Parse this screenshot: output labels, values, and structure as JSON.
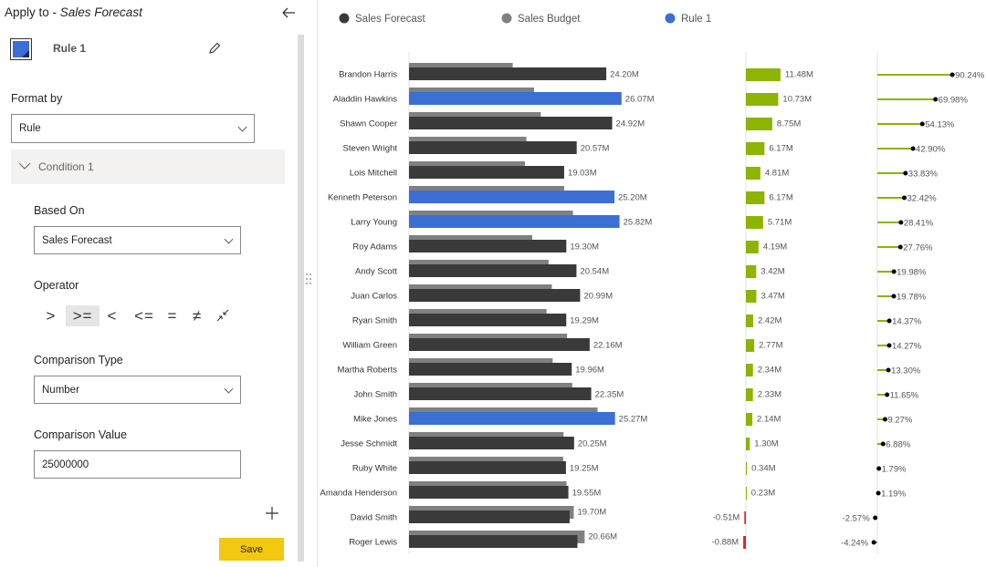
{
  "panel": {
    "apply_to_label": "Apply to - ",
    "apply_to_field": "Sales Forecast",
    "rule_name": "Rule 1",
    "format_by_label": "Format by",
    "format_by_value": "Rule",
    "condition_title": "Condition 1",
    "based_on_label": "Based On",
    "based_on_value": "Sales Forecast",
    "operator_label": "Operator",
    "operators": [
      ">",
      ">=",
      "<",
      "<=",
      "=",
      "≠"
    ],
    "comparison_type_label": "Comparison Type",
    "comparison_type_value": "Number",
    "comparison_value_label": "Comparison Value",
    "comparison_value": 25000000,
    "save_button": "Save"
  },
  "chart_data": [
    {
      "type": "hbar",
      "categories": [
        "Brandon Harris",
        "Aladdin Hawkins",
        "Shawn Cooper",
        "Steven Wright",
        "Lois Mitchell",
        "Kenneth Peterson",
        "Larry Young",
        "Roy Adams",
        "Andy Scott",
        "Juan Carlos",
        "Ryan Smith",
        "William Green",
        "Martha Roberts",
        "John Smith",
        "Mike Jones",
        "Jesse Schmidt",
        "Ruby White",
        "Amanda Henderson",
        "David Smith",
        "Roger Lewis"
      ],
      "series": [
        {
          "name": "Sales Forecast",
          "color": "#3a3a3a",
          "point_colors": [
            "#3a3a3a",
            "#3b6fd6",
            "#3a3a3a",
            "#3a3a3a",
            "#3a3a3a",
            "#3b6fd6",
            "#3b6fd6",
            "#3a3a3a",
            "#3a3a3a",
            "#3a3a3a",
            "#3a3a3a",
            "#3a3a3a",
            "#3a3a3a",
            "#3a3a3a",
            "#3b6fd6",
            "#3a3a3a",
            "#3a3a3a",
            "#3a3a3a",
            "#3a3a3a",
            "#3a3a3a"
          ],
          "values": [
            24.2,
            26.07,
            24.92,
            20.57,
            19.03,
            25.2,
            25.82,
            19.3,
            20.54,
            20.99,
            19.29,
            22.16,
            19.96,
            22.35,
            25.27,
            20.25,
            19.25,
            19.55,
            19.7,
            20.66
          ],
          "value_labels": [
            "24.20M",
            "26.07M",
            "24.92M",
            "20.57M",
            "19.03M",
            "25.20M",
            "25.82M",
            "19.30M",
            "20.54M",
            "20.99M",
            "19.29M",
            "22.16M",
            "19.96M",
            "22.35M",
            "25.27M",
            "20.25M",
            "19.25M",
            "19.55M",
            "19.70M",
            "20.66M"
          ]
        },
        {
          "name": "Sales Budget",
          "color": "#808080",
          "values": [
            12.72,
            15.34,
            16.17,
            14.4,
            14.22,
            19.03,
            20.11,
            15.11,
            17.12,
            17.52,
            16.87,
            19.39,
            17.62,
            20.02,
            23.13,
            18.95,
            18.91,
            19.32,
            20.21,
            21.54
          ]
        },
        {
          "name": "Rule 1",
          "color": "#3b6fd6"
        }
      ]
    },
    {
      "type": "variance-bar",
      "color": "#8cb400",
      "negative_color": "#e32020",
      "values": [
        11.48,
        10.73,
        8.75,
        6.17,
        4.81,
        6.17,
        5.71,
        4.19,
        3.42,
        3.47,
        2.42,
        2.77,
        2.34,
        2.33,
        2.14,
        1.3,
        0.34,
        0.23,
        -0.51,
        -0.88
      ],
      "value_labels": [
        "11.48M",
        "10.73M",
        "8.75M",
        "6.17M",
        "4.81M",
        "6.17M",
        "5.71M",
        "4.19M",
        "3.42M",
        "3.47M",
        "2.42M",
        "2.77M",
        "2.34M",
        "2.33M",
        "2.14M",
        "1.30M",
        "0.34M",
        "0.23M",
        "-0.51M",
        "-0.88M"
      ]
    },
    {
      "type": "lollipop",
      "color": "#8cb400",
      "marker_color": "#000000",
      "values": [
        90.24,
        69.98,
        54.13,
        42.9,
        33.83,
        32.42,
        28.41,
        27.76,
        19.98,
        19.78,
        14.37,
        14.27,
        13.3,
        11.65,
        9.27,
        6.88,
        1.79,
        1.19,
        -2.57,
        -4.24
      ],
      "value_labels": [
        "90.24%",
        "69.98%",
        "54.13%",
        "42.90%",
        "33.83%",
        "32.42%",
        "28.41%",
        "27.76%",
        "19.98%",
        "19.78%",
        "14.37%",
        "14.27%",
        "13.30%",
        "11.65%",
        "9.27%",
        "6.88%",
        "1.79%",
        "1.19%",
        "-2.57%",
        "-4.24%"
      ]
    }
  ]
}
